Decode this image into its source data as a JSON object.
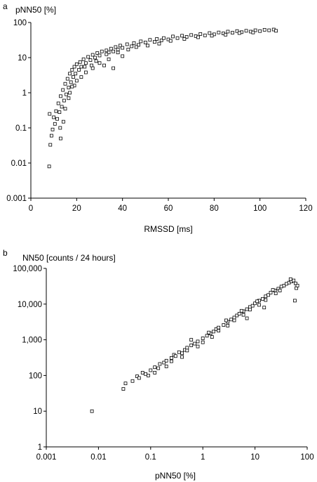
{
  "chart_data": [
    {
      "type": "scatter",
      "panel": "a",
      "y_axis_title": "pNN50 [%]",
      "x_axis_title": "RMSSD [ms]",
      "x_scale": "linear",
      "y_scale": "log",
      "xlim": [
        0,
        120
      ],
      "ylim": [
        0.001,
        100
      ],
      "x_ticks": [
        0,
        20,
        40,
        60,
        80,
        100,
        120
      ],
      "x_tick_labels": [
        "0",
        "20",
        "40",
        "60",
        "80",
        "100",
        "120"
      ],
      "y_ticks": [
        0.001,
        0.01,
        0.1,
        1,
        10,
        100
      ],
      "y_tick_labels": [
        "0.001",
        "0.01",
        "0.1",
        "1",
        "10",
        "100"
      ],
      "grid": false,
      "marker": "open square",
      "points": [
        [
          8.0,
          0.008
        ],
        [
          8.5,
          0.033
        ],
        [
          9.0,
          0.06
        ],
        [
          9.5,
          0.09
        ],
        [
          10.0,
          0.2
        ],
        [
          8.2,
          0.25
        ],
        [
          10.5,
          0.13
        ],
        [
          11.0,
          0.3
        ],
        [
          11.5,
          0.18
        ],
        [
          12.0,
          0.5
        ],
        [
          12.5,
          0.28
        ],
        [
          13.0,
          0.8
        ],
        [
          12.8,
          0.1
        ],
        [
          13.5,
          0.4
        ],
        [
          14.0,
          1.2
        ],
        [
          14.2,
          0.15
        ],
        [
          14.5,
          0.6
        ],
        [
          15.0,
          1.8
        ],
        [
          15.5,
          0.9
        ],
        [
          16.0,
          2.5
        ],
        [
          16.5,
          1.4
        ],
        [
          17.0,
          3.5
        ],
        [
          17.5,
          2.0
        ],
        [
          18.0,
          4.5
        ],
        [
          18.5,
          2.8
        ],
        [
          19.0,
          5.5
        ],
        [
          19.5,
          3.5
        ],
        [
          20.0,
          6.5
        ],
        [
          21.0,
          4.5
        ],
        [
          21.5,
          7.5
        ],
        [
          22.0,
          5.5
        ],
        [
          23.0,
          9.0
        ],
        [
          24.0,
          7.0
        ],
        [
          25.0,
          10.5
        ],
        [
          26.0,
          8.5
        ],
        [
          27.0,
          12.0
        ],
        [
          28.0,
          10.0
        ],
        [
          29.0,
          13.5
        ],
        [
          30.0,
          11.5
        ],
        [
          31.0,
          15.0
        ],
        [
          32.0,
          6.0
        ],
        [
          33.0,
          16.0
        ],
        [
          34.0,
          14.0
        ],
        [
          35.0,
          18.0
        ],
        [
          36.0,
          15.0
        ],
        [
          37.0,
          20.0
        ],
        [
          38.0,
          17.0
        ],
        [
          39.0,
          22.0
        ],
        [
          40.0,
          19.0
        ],
        [
          42.0,
          24.0
        ],
        [
          44.0,
          21.0
        ],
        [
          45.0,
          26.0
        ],
        [
          47.0,
          23.0
        ],
        [
          48.0,
          29.0
        ],
        [
          50.0,
          27.0
        ],
        [
          52.0,
          32.0
        ],
        [
          54.0,
          28.0
        ],
        [
          55.0,
          34.0
        ],
        [
          57.0,
          31.0
        ],
        [
          58.0,
          36.0
        ],
        [
          60.0,
          33.0
        ],
        [
          62.0,
          40.0
        ],
        [
          64.0,
          36.0
        ],
        [
          66.0,
          42.0
        ],
        [
          68.0,
          39.0
        ],
        [
          70.0,
          44.0
        ],
        [
          72.0,
          41.0
        ],
        [
          74.0,
          47.0
        ],
        [
          76.0,
          43.0
        ],
        [
          78.0,
          50.0
        ],
        [
          80.0,
          46.0
        ],
        [
          82.0,
          52.0
        ],
        [
          84.0,
          49.0
        ],
        [
          86.0,
          55.0
        ],
        [
          88.0,
          51.0
        ],
        [
          90.0,
          57.0
        ],
        [
          92.0,
          53.0
        ],
        [
          94.0,
          58.0
        ],
        [
          96.0,
          55.0
        ],
        [
          98.0,
          60.0
        ],
        [
          100.0,
          57.0
        ],
        [
          102.0,
          62.0
        ],
        [
          104.0,
          60.0
        ],
        [
          106.0,
          63.0
        ],
        [
          107.0,
          58.0
        ],
        [
          15.0,
          0.35
        ],
        [
          13.0,
          0.05
        ],
        [
          16.5,
          0.7
        ],
        [
          19.0,
          1.6
        ],
        [
          22.0,
          2.8
        ],
        [
          24.0,
          3.8
        ],
        [
          27.0,
          5.0
        ],
        [
          30.0,
          7.0
        ],
        [
          34.0,
          9.0
        ],
        [
          36.0,
          5.0
        ],
        [
          40.0,
          11.0
        ],
        [
          20.0,
          2.2
        ],
        [
          18.0,
          1.5
        ],
        [
          17.0,
          1.0
        ],
        [
          23.5,
          5.5
        ],
        [
          26.5,
          6.0
        ],
        [
          28.5,
          8.0
        ],
        [
          33.0,
          12.5
        ],
        [
          38.0,
          14.0
        ],
        [
          42.5,
          17.0
        ],
        [
          46.0,
          20.0
        ],
        [
          51.0,
          22.0
        ],
        [
          56.0,
          25.0
        ],
        [
          61.0,
          30.0
        ],
        [
          67.0,
          34.0
        ],
        [
          73.0,
          38.0
        ],
        [
          79.0,
          42.0
        ],
        [
          85.0,
          45.0
        ],
        [
          91.0,
          50.0
        ],
        [
          97.0,
          52.0
        ]
      ]
    },
    {
      "type": "scatter",
      "panel": "b",
      "y_axis_title": "NN50 [counts / 24 hours]",
      "x_axis_title": "pNN50 [%]",
      "x_scale": "log",
      "y_scale": "log",
      "xlim": [
        0.001,
        100
      ],
      "ylim": [
        1,
        100000
      ],
      "x_ticks": [
        0.001,
        0.01,
        0.1,
        1,
        10,
        100
      ],
      "x_tick_labels": [
        "0.001",
        "0.01",
        "0.1",
        "1",
        "10",
        "100"
      ],
      "y_ticks": [
        1,
        10,
        100,
        1000,
        10000,
        100000
      ],
      "y_tick_labels": [
        "1",
        "10",
        "100",
        "1,000",
        "10,000",
        "100,000"
      ],
      "grid": false,
      "marker": "open square",
      "points": [
        [
          0.0075,
          10
        ],
        [
          0.03,
          42
        ],
        [
          0.033,
          60
        ],
        [
          0.045,
          70
        ],
        [
          0.055,
          95
        ],
        [
          0.06,
          85
        ],
        [
          0.07,
          120
        ],
        [
          0.08,
          110
        ],
        [
          0.1,
          140
        ],
        [
          0.12,
          170
        ],
        [
          0.14,
          160
        ],
        [
          0.15,
          210
        ],
        [
          0.18,
          230
        ],
        [
          0.2,
          260
        ],
        [
          0.25,
          310
        ],
        [
          0.28,
          380
        ],
        [
          0.3,
          350
        ],
        [
          0.35,
          450
        ],
        [
          0.4,
          420
        ],
        [
          0.45,
          520
        ],
        [
          0.5,
          600
        ],
        [
          0.6,
          700
        ],
        [
          0.7,
          780
        ],
        [
          0.8,
          900
        ],
        [
          1.0,
          1100
        ],
        [
          1.2,
          1300
        ],
        [
          1.4,
          1500
        ],
        [
          1.6,
          1700
        ],
        [
          1.8,
          2000
        ],
        [
          2.0,
          2200
        ],
        [
          2.5,
          2600
        ],
        [
          3.0,
          3200
        ],
        [
          3.5,
          3700
        ],
        [
          4.0,
          4200
        ],
        [
          4.5,
          4800
        ],
        [
          5.0,
          5400
        ],
        [
          6.0,
          6300
        ],
        [
          7.0,
          7200
        ],
        [
          8.0,
          8300
        ],
        [
          9.0,
          9000
        ],
        [
          10.0,
          10500
        ],
        [
          12.0,
          12500
        ],
        [
          14.0,
          14000
        ],
        [
          16.0,
          16500
        ],
        [
          18.0,
          18000
        ],
        [
          20.0,
          21000
        ],
        [
          24.0,
          24000
        ],
        [
          28.0,
          27000
        ],
        [
          32.0,
          31000
        ],
        [
          36.0,
          33000
        ],
        [
          40.0,
          37000
        ],
        [
          45.0,
          40000
        ],
        [
          50.0,
          43000
        ],
        [
          55.0,
          46000
        ],
        [
          60.0,
          38000
        ],
        [
          62.0,
          28000
        ],
        [
          58.0,
          12500
        ],
        [
          65.0,
          33000
        ],
        [
          48.0,
          50000
        ],
        [
          0.09,
          100
        ],
        [
          0.2,
          180
        ],
        [
          0.4,
          330
        ],
        [
          0.8,
          650
        ],
        [
          1.5,
          1200
        ],
        [
          3.0,
          2500
        ],
        [
          6.0,
          5000
        ],
        [
          12.0,
          9500
        ],
        [
          25.0,
          20000
        ],
        [
          0.6,
          1000
        ],
        [
          1.0,
          850
        ],
        [
          2.0,
          1800
        ],
        [
          4.0,
          3500
        ],
        [
          8.0,
          7000
        ],
        [
          16.0,
          13000
        ],
        [
          30.0,
          24000
        ],
        [
          1.3,
          1600
        ],
        [
          2.8,
          3500
        ],
        [
          5.5,
          6500
        ],
        [
          11.0,
          12000
        ],
        [
          22.0,
          25000
        ],
        [
          0.12,
          120
        ],
        [
          0.25,
          250
        ],
        [
          0.5,
          500
        ],
        [
          7.0,
          4000
        ],
        [
          15.0,
          8000
        ]
      ]
    }
  ],
  "panels": {
    "a": {
      "letter": "a",
      "y_title": "pNN50 [%]",
      "x_title": "RMSSD [ms]"
    },
    "b": {
      "letter": "b",
      "y_title": "NN50 [counts / 24 hours]",
      "x_title": "pNN50 [%]"
    }
  }
}
